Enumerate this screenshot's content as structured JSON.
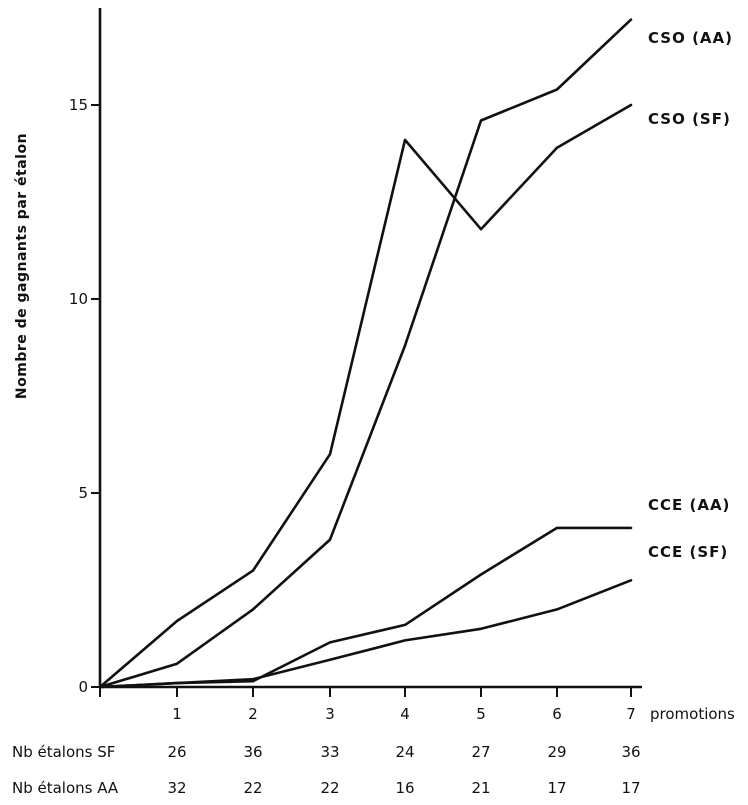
{
  "chart_data": {
    "type": "line",
    "title": "",
    "xlabel": "promotions",
    "ylabel": "Nombre de gagnants par étalon",
    "x": [
      0,
      1,
      2,
      3,
      4,
      5,
      6,
      7
    ],
    "x_tick_labels": [
      "1",
      "2",
      "3",
      "4",
      "5",
      "6",
      "7"
    ],
    "y_tick_labels": [
      "0",
      "5",
      "10",
      "15"
    ],
    "ylim": [
      0,
      18
    ],
    "grid": false,
    "series": [
      {
        "name": "CSO (AA)",
        "values": [
          0,
          0.6,
          2.0,
          3.8,
          8.8,
          14.6,
          15.4,
          17.2
        ]
      },
      {
        "name": "CSO (SF)",
        "values": [
          0,
          1.7,
          3.0,
          6.0,
          14.1,
          11.8,
          13.9,
          15.0
        ]
      },
      {
        "name": "CCE (AA)",
        "values": [
          0,
          0.1,
          0.15,
          1.15,
          1.6,
          2.9,
          4.1,
          4.1
        ]
      },
      {
        "name": "CCE (SF)",
        "values": [
          0,
          0.1,
          0.2,
          0.7,
          1.2,
          1.5,
          2.0,
          2.75
        ]
      }
    ],
    "table": {
      "rows": [
        {
          "label": "Nb étalons SF",
          "values": [
            "26",
            "36",
            "33",
            "24",
            "27",
            "29",
            "36"
          ]
        },
        {
          "label": "Nb étalons AA",
          "values": [
            "32",
            "22",
            "22",
            "16",
            "21",
            "17",
            "17"
          ]
        }
      ]
    }
  }
}
